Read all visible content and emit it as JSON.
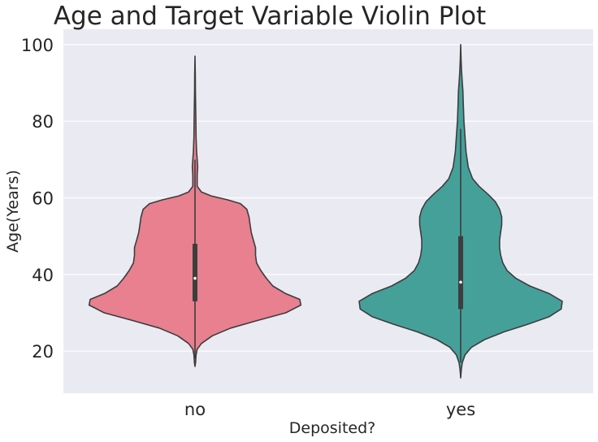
{
  "chart_data": {
    "type": "violin",
    "title": "Age and Target Variable Violin Plot",
    "xlabel": "Deposited?",
    "ylabel": "Age(Years)",
    "categories": [
      "no",
      "yes"
    ],
    "ylim": [
      9,
      104
    ],
    "yticks": [
      20,
      40,
      60,
      80,
      100
    ],
    "grid": true,
    "colors": {
      "no": "#e8808f",
      "yes": "#45a09a",
      "background": "#eaeaf2",
      "outline": "#3d3d3d"
    },
    "series": [
      {
        "category": "no",
        "min": 16,
        "max": 97,
        "q1": 33,
        "median": 39,
        "q3": 48,
        "whisker_low": 18,
        "whisker_high": 70,
        "density": [
          [
            16,
            0.0
          ],
          [
            17,
            0.005
          ],
          [
            19,
            0.01
          ],
          [
            20.5,
            0.02
          ],
          [
            22,
            0.06
          ],
          [
            24,
            0.16
          ],
          [
            26,
            0.33
          ],
          [
            28,
            0.58
          ],
          [
            30,
            0.84
          ],
          [
            32,
            0.98
          ],
          [
            33.5,
            0.97
          ],
          [
            35,
            0.84
          ],
          [
            37,
            0.72
          ],
          [
            39,
            0.66
          ],
          [
            41,
            0.61
          ],
          [
            43,
            0.57
          ],
          [
            45,
            0.56
          ],
          [
            47,
            0.56
          ],
          [
            49,
            0.54
          ],
          [
            51,
            0.52
          ],
          [
            53,
            0.51
          ],
          [
            55,
            0.5
          ],
          [
            57,
            0.48
          ],
          [
            58.5,
            0.42
          ],
          [
            59.5,
            0.3
          ],
          [
            60.5,
            0.15
          ],
          [
            61.5,
            0.06
          ],
          [
            63,
            0.02
          ],
          [
            66,
            0.02
          ],
          [
            68,
            0.025
          ],
          [
            70,
            0.02
          ],
          [
            72,
            0.015
          ],
          [
            76,
            0.01
          ],
          [
            80,
            0.008
          ],
          [
            84,
            0.006
          ],
          [
            88,
            0.004
          ],
          [
            92,
            0.003
          ],
          [
            97,
            0.0
          ]
        ]
      },
      {
        "category": "yes",
        "min": 13,
        "max": 100,
        "q1": 31,
        "median": 38,
        "q3": 50,
        "whisker_low": 17,
        "whisker_high": 78,
        "density": [
          [
            13,
            0.0
          ],
          [
            15,
            0.005
          ],
          [
            17,
            0.015
          ],
          [
            19,
            0.04
          ],
          [
            21,
            0.1
          ],
          [
            23,
            0.22
          ],
          [
            25,
            0.4
          ],
          [
            27,
            0.62
          ],
          [
            29,
            0.82
          ],
          [
            31,
            0.93
          ],
          [
            33,
            0.94
          ],
          [
            35,
            0.82
          ],
          [
            37,
            0.64
          ],
          [
            39,
            0.51
          ],
          [
            41,
            0.43
          ],
          [
            43,
            0.39
          ],
          [
            45,
            0.37
          ],
          [
            47,
            0.36
          ],
          [
            49,
            0.36
          ],
          [
            51,
            0.37
          ],
          [
            53,
            0.38
          ],
          [
            55,
            0.38
          ],
          [
            57,
            0.36
          ],
          [
            59,
            0.32
          ],
          [
            61,
            0.25
          ],
          [
            63,
            0.17
          ],
          [
            65,
            0.11
          ],
          [
            68,
            0.07
          ],
          [
            72,
            0.05
          ],
          [
            76,
            0.04
          ],
          [
            80,
            0.03
          ],
          [
            84,
            0.025
          ],
          [
            88,
            0.02
          ],
          [
            90,
            0.015
          ],
          [
            93,
            0.008
          ],
          [
            96,
            0.004
          ],
          [
            100,
            0.0
          ]
        ]
      }
    ]
  }
}
